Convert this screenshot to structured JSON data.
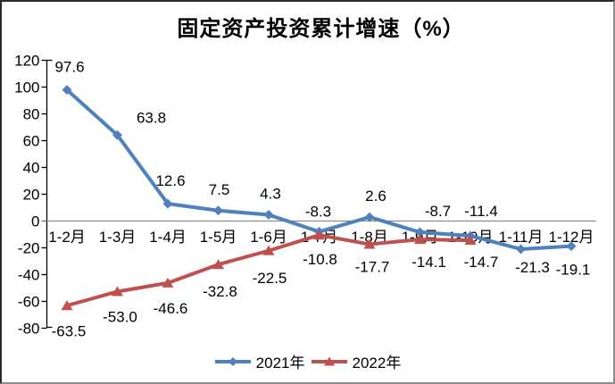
{
  "chart_data": {
    "type": "line",
    "title": "固定资产投资累计增速（%）",
    "categories": [
      "1-2月",
      "1-3月",
      "1-4月",
      "1-5月",
      "1-6月",
      "1-7月",
      "1-8月",
      "1-9月",
      "1-10月",
      "1-11月",
      "1-12月"
    ],
    "series": [
      {
        "name": "2021年",
        "color": "#4F81BD",
        "marker": "diamond",
        "values": [
          97.6,
          63.8,
          12.6,
          7.5,
          4.3,
          -8.3,
          2.6,
          -8.7,
          -11.4,
          -21.3,
          -19.1
        ]
      },
      {
        "name": "2022年",
        "color": "#C0504D",
        "marker": "triangle",
        "values": [
          -63.5,
          -53.0,
          -46.6,
          -32.8,
          -22.5,
          -10.8,
          -17.7,
          -14.1,
          -14.7,
          null,
          null
        ]
      }
    ],
    "ylim": [
      -80,
      120
    ],
    "ytick_step": 20,
    "ytick_labels": [
      "120",
      "100",
      "80",
      "60",
      "40",
      "20",
      "0",
      "-20",
      "-40",
      "-60",
      "-80"
    ],
    "grid": "zero-line-only",
    "legend_position": "bottom",
    "label_decimals": 1,
    "colors": {
      "axis": "#000000",
      "zero_line": "#808080",
      "text": "#000000",
      "background": "#ffffff"
    }
  }
}
